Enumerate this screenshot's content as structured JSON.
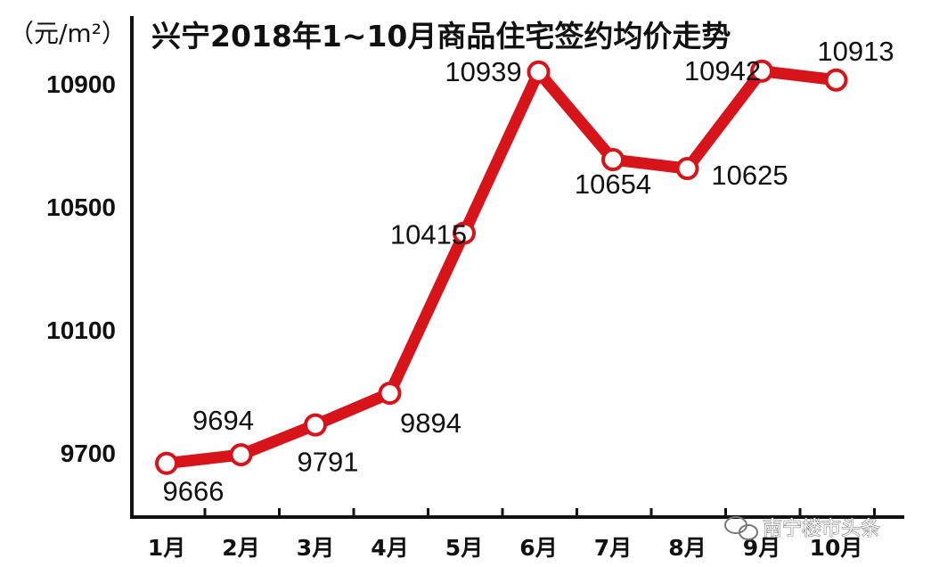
{
  "chart_data": {
    "type": "line",
    "title": "兴宁2018年1~10月商品住宅签约均价走势",
    "ylabel": "（元/m²）",
    "xlabel": "",
    "categories": [
      "1月",
      "2月",
      "3月",
      "4月",
      "5月",
      "6月",
      "7月",
      "8月",
      "9月",
      "10月"
    ],
    "series": [
      {
        "values": [
          9666,
          9694,
          9791,
          9894,
          10415,
          10939,
          10654,
          10625,
          10942,
          10913
        ]
      }
    ],
    "yticks": [
      9700,
      10100,
      10500,
      10900
    ],
    "ylim": [
      9330,
      11000
    ],
    "grid": false,
    "legend": "none",
    "colors": {
      "line": "#d7141a",
      "marker_fill": "#ffffff",
      "axis": "#111111"
    }
  },
  "watermark": "南宁楼市头条"
}
